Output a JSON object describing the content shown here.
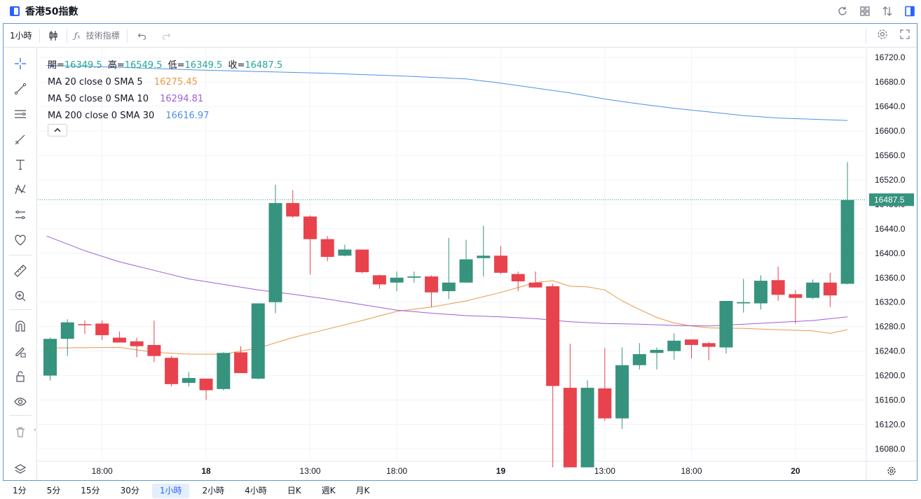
{
  "window": {
    "title": "香港50指數"
  },
  "toolbar": {
    "interval": "1小時",
    "indicators_label": "技術指標"
  },
  "legend": {
    "ohlc": [
      {
        "k": "開=",
        "v": "16349.5"
      },
      {
        "k": "高=",
        "v": "16549.5"
      },
      {
        "k": "低=",
        "v": "16349.5"
      },
      {
        "k": "收=",
        "v": "16487.5"
      }
    ],
    "ma": [
      {
        "label": "MA 20 close 0 SMA 5",
        "value": "16275.45",
        "color": "#e99846"
      },
      {
        "label": "MA 50 close 0 SMA 10",
        "value": "16294.81",
        "color": "#9c5fd6"
      },
      {
        "label": "MA 200 close 0 SMA 30",
        "value": "16616.97",
        "color": "#4e8fe6"
      }
    ]
  },
  "timeframes": [
    "1分",
    "5分",
    "15分",
    "30分",
    "1小時",
    "2小時",
    "4小時",
    "日K",
    "週K",
    "月K"
  ],
  "active_timeframe": "1小時",
  "colors": {
    "up": "#36937e",
    "down": "#e8434d",
    "accent": "#2962ff",
    "last_price_bg": "#36937e"
  },
  "chart_data": {
    "type": "candlestick",
    "y_axis_ticks": [
      "16720.0",
      "16680.0",
      "16640.0",
      "16600.0",
      "16560.0",
      "16520.0",
      "16480.0",
      "16440.0",
      "16400.0",
      "16360.0",
      "16320.0",
      "16280.0",
      "16240.0",
      "16200.0",
      "16160.0",
      "16120.0",
      "16080.0"
    ],
    "ylim": [
      16060,
      16735
    ],
    "x_axis_labels": [
      {
        "index": 3,
        "label": "18:00"
      },
      {
        "index": 9,
        "label": "18"
      },
      {
        "index": 15,
        "label": "13:00"
      },
      {
        "index": 20,
        "label": "18:00"
      },
      {
        "index": 26,
        "label": "19"
      },
      {
        "index": 32,
        "label": "13:00"
      },
      {
        "index": 37,
        "label": "18:00"
      },
      {
        "index": 43,
        "label": "20"
      }
    ],
    "last_price": "16487.5",
    "candles": [
      {
        "o": 16200,
        "h": 16262,
        "l": 16192,
        "c": 16260
      },
      {
        "o": 16260,
        "h": 16292,
        "l": 16232,
        "c": 16287
      },
      {
        "o": 16284,
        "h": 16290,
        "l": 16268,
        "c": 16283
      },
      {
        "o": 16285,
        "h": 16290,
        "l": 16258,
        "c": 16266
      },
      {
        "o": 16262,
        "h": 16272,
        "l": 16254,
        "c": 16254
      },
      {
        "o": 16256,
        "h": 16262,
        "l": 16230,
        "c": 16248
      },
      {
        "o": 16250,
        "h": 16290,
        "l": 16222,
        "c": 16232
      },
      {
        "o": 16229,
        "h": 16232,
        "l": 16182,
        "c": 16186
      },
      {
        "o": 16188,
        "h": 16206,
        "l": 16182,
        "c": 16196
      },
      {
        "o": 16195,
        "h": 16195,
        "l": 16160,
        "c": 16176
      },
      {
        "o": 16178,
        "h": 16238,
        "l": 16176,
        "c": 16237
      },
      {
        "o": 16238,
        "h": 16248,
        "l": 16204,
        "c": 16204
      },
      {
        "o": 16195,
        "h": 16318,
        "l": 16194,
        "c": 16318
      },
      {
        "o": 16320,
        "h": 16512,
        "l": 16302,
        "c": 16482
      },
      {
        "o": 16482,
        "h": 16503,
        "l": 16458,
        "c": 16460
      },
      {
        "o": 16460,
        "h": 16462,
        "l": 16365,
        "c": 16423
      },
      {
        "o": 16423,
        "h": 16428,
        "l": 16387,
        "c": 16394
      },
      {
        "o": 16396,
        "h": 16414,
        "l": 16395,
        "c": 16406
      },
      {
        "o": 16406,
        "h": 16406,
        "l": 16367,
        "c": 16369
      },
      {
        "o": 16364,
        "h": 16365,
        "l": 16342,
        "c": 16349
      },
      {
        "o": 16352,
        "h": 16370,
        "l": 16338,
        "c": 16360
      },
      {
        "o": 16360,
        "h": 16370,
        "l": 16352,
        "c": 16362
      },
      {
        "o": 16362,
        "h": 16364,
        "l": 16312,
        "c": 16336
      },
      {
        "o": 16338,
        "h": 16425,
        "l": 16325,
        "c": 16352
      },
      {
        "o": 16352,
        "h": 16422,
        "l": 16352,
        "c": 16390
      },
      {
        "o": 16392,
        "h": 16445,
        "l": 16362,
        "c": 16396
      },
      {
        "o": 16396,
        "h": 16412,
        "l": 16366,
        "c": 16368
      },
      {
        "o": 16366,
        "h": 16370,
        "l": 16338,
        "c": 16354
      },
      {
        "o": 16352,
        "h": 16370,
        "l": 16345,
        "c": 16344
      },
      {
        "o": 16346,
        "h": 16350,
        "l": 16050,
        "c": 16183
      },
      {
        "o": 16180,
        "h": 16252,
        "l": 16050,
        "c": 16050
      },
      {
        "o": 16050,
        "h": 16192,
        "l": 16050,
        "c": 16180
      },
      {
        "o": 16179,
        "h": 16245,
        "l": 16126,
        "c": 16130
      },
      {
        "o": 16130,
        "h": 16246,
        "l": 16113,
        "c": 16217
      },
      {
        "o": 16217,
        "h": 16253,
        "l": 16210,
        "c": 16235
      },
      {
        "o": 16237,
        "h": 16246,
        "l": 16210,
        "c": 16242
      },
      {
        "o": 16240,
        "h": 16269,
        "l": 16226,
        "c": 16257
      },
      {
        "o": 16259,
        "h": 16259,
        "l": 16228,
        "c": 16250
      },
      {
        "o": 16253,
        "h": 16255,
        "l": 16225,
        "c": 16247
      },
      {
        "o": 16246,
        "h": 16322,
        "l": 16236,
        "c": 16322
      },
      {
        "o": 16318,
        "h": 16358,
        "l": 16303,
        "c": 16320
      },
      {
        "o": 16318,
        "h": 16364,
        "l": 16308,
        "c": 16355
      },
      {
        "o": 16356,
        "h": 16378,
        "l": 16322,
        "c": 16332
      },
      {
        "o": 16333,
        "h": 16340,
        "l": 16285,
        "c": 16327
      },
      {
        "o": 16327,
        "h": 16357,
        "l": 16325,
        "c": 16352
      },
      {
        "o": 16352,
        "h": 16368,
        "l": 16312,
        "c": 16331
      },
      {
        "o": 16350,
        "h": 16549,
        "l": 16349,
        "c": 16487
      }
    ],
    "series": [
      {
        "name": "MA 20 close 0 SMA 5",
        "color": "#e99846",
        "points": [
          [
            0,
            16245
          ],
          [
            4,
            16246
          ],
          [
            6,
            16238
          ],
          [
            8,
            16235
          ],
          [
            10,
            16235
          ],
          [
            12,
            16245
          ],
          [
            14,
            16262
          ],
          [
            16,
            16276
          ],
          [
            18,
            16290
          ],
          [
            20,
            16305
          ],
          [
            22,
            16312
          ],
          [
            24,
            16322
          ],
          [
            26,
            16336
          ],
          [
            28,
            16352
          ],
          [
            29,
            16355
          ],
          [
            30,
            16346
          ],
          [
            31,
            16345
          ],
          [
            32,
            16340
          ],
          [
            33,
            16322
          ],
          [
            34,
            16308
          ],
          [
            35,
            16295
          ],
          [
            36,
            16286
          ],
          [
            37,
            16281
          ],
          [
            38,
            16278
          ],
          [
            40,
            16277
          ],
          [
            42,
            16275
          ],
          [
            44,
            16273
          ],
          [
            45,
            16269
          ],
          [
            46,
            16275
          ]
        ]
      },
      {
        "name": "MA 50 close 0 SMA 10",
        "color": "#9c5fd6",
        "points": [
          [
            -0.2,
            16428
          ],
          [
            2,
            16404
          ],
          [
            4,
            16386
          ],
          [
            6,
            16372
          ],
          [
            8,
            16358
          ],
          [
            10,
            16349
          ],
          [
            12,
            16340
          ],
          [
            14,
            16333
          ],
          [
            16,
            16325
          ],
          [
            18,
            16316
          ],
          [
            20,
            16307
          ],
          [
            22,
            16302
          ],
          [
            24,
            16298
          ],
          [
            26,
            16296
          ],
          [
            28,
            16293
          ],
          [
            30,
            16288
          ],
          [
            32,
            16285
          ],
          [
            34,
            16284
          ],
          [
            36,
            16282
          ],
          [
            38,
            16281
          ],
          [
            40,
            16284
          ],
          [
            42,
            16287
          ],
          [
            44,
            16290
          ],
          [
            46,
            16296
          ]
        ]
      },
      {
        "name": "MA 200 close 0 SMA 30",
        "color": "#4e8fe6",
        "points": [
          [
            -0.2,
            16707
          ],
          [
            4,
            16704
          ],
          [
            8,
            16700
          ],
          [
            12,
            16697
          ],
          [
            16,
            16694
          ],
          [
            20,
            16690
          ],
          [
            24,
            16685
          ],
          [
            26,
            16678
          ],
          [
            28,
            16670
          ],
          [
            30,
            16662
          ],
          [
            32,
            16652
          ],
          [
            34,
            16644
          ],
          [
            36,
            16637
          ],
          [
            38,
            16631
          ],
          [
            40,
            16625
          ],
          [
            42,
            16621
          ],
          [
            44,
            16619
          ],
          [
            46,
            16617
          ]
        ]
      }
    ]
  }
}
